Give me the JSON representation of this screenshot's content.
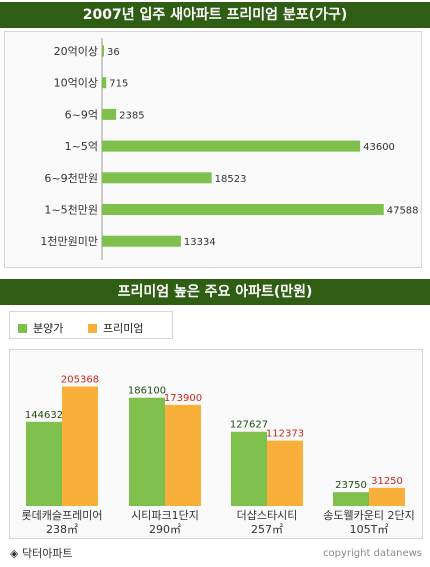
{
  "chart_data": [
    {
      "type": "bar",
      "orientation": "horizontal",
      "title": "2007년 입주 새아파트 프리미엄 분포(가구)",
      "categories": [
        "20억이상",
        "10억이상",
        "6~9억",
        "1~5억",
        "6~9천만원",
        "1~5천만원",
        "1천만원미만"
      ],
      "values": [
        36,
        715,
        2385,
        43600,
        18523,
        47588,
        13334
      ],
      "xlim": [
        0,
        50000
      ],
      "grid": false,
      "colors": {
        "bar": "#7fc04d"
      }
    },
    {
      "type": "bar",
      "title": "프리미엄 높은 주요 아파트(만원)",
      "categories": [
        {
          "name": "롯데캐슬프레미어",
          "size": "238㎡"
        },
        {
          "name": "시티파크1단지",
          "size": "290㎡"
        },
        {
          "name": "더샵스타시티",
          "size": "257㎡"
        },
        {
          "name": "송도웰카운티 2단지",
          "size": "105T㎡"
        }
      ],
      "series": [
        {
          "name": "분양가",
          "values": [
            144632,
            186100,
            127627,
            23750
          ],
          "color": "#7fc04d",
          "label_color": "#1e4f12"
        },
        {
          "name": "프리미엄",
          "values": [
            205368,
            173900,
            112373,
            31250
          ],
          "color": "#f8b03a",
          "label_color": "#c8281e"
        }
      ],
      "ylim": [
        0,
        220000
      ],
      "legend": "top-left",
      "grid": false
    }
  ],
  "footer": {
    "source": "◈ 닥터아파트",
    "copyright": "copyright datanews"
  }
}
